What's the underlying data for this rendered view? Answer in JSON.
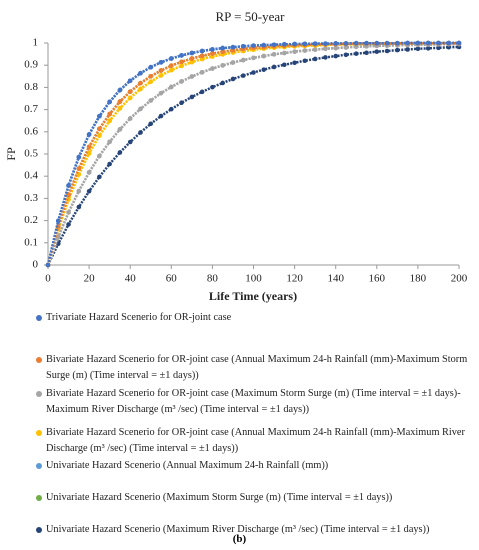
{
  "chart_data": {
    "type": "scatter",
    "title": "RP = 50-year",
    "x_label": "Life Time (years)",
    "y_label": "FP",
    "caption": "(b)",
    "x": [
      0,
      5,
      10,
      15,
      20,
      25,
      30,
      35,
      40,
      45,
      50,
      55,
      60,
      65,
      70,
      75,
      80,
      85,
      90,
      95,
      100,
      105,
      110,
      115,
      120,
      125,
      130,
      135,
      140,
      145,
      150,
      155,
      160,
      165,
      170,
      175,
      180,
      185,
      190,
      195,
      200
    ],
    "xlim": [
      0,
      200
    ],
    "xticks": [
      0,
      20,
      40,
      60,
      80,
      100,
      120,
      140,
      160,
      180,
      200
    ],
    "ylim": [
      0,
      1
    ],
    "yticks": [
      0,
      0.1,
      0.2,
      0.3,
      0.4,
      0.5,
      0.6,
      0.7,
      0.8,
      0.9,
      1
    ],
    "series": [
      {
        "name": "Trivariate Hazard Scenerio for OR-joint case",
        "color": "#4472c4",
        "values": [
          0,
          0.199,
          0.358,
          0.486,
          0.588,
          0.67,
          0.735,
          0.788,
          0.83,
          0.864,
          0.891,
          0.913,
          0.93,
          0.944,
          0.955,
          0.964,
          0.971,
          0.977,
          0.981,
          0.985,
          0.988,
          0.99,
          0.992,
          0.994,
          0.995,
          0.996,
          0.997,
          0.997,
          0.998,
          0.998,
          0.999,
          0.999,
          0.999,
          0.999,
          0.999,
          1,
          1,
          1,
          1,
          1,
          1
        ]
      },
      {
        "name": "Bivariate Hazard Scenerio for OR-joint case (Annual Maximum 24-h Rainfall (mm)-Maximum Storm Surge (m) (Time interval = ±1 days))",
        "color": "#ed7d31",
        "values": [
          0,
          0.173,
          0.316,
          0.434,
          0.532,
          0.613,
          0.68,
          0.736,
          0.781,
          0.819,
          0.85,
          0.876,
          0.898,
          0.915,
          0.93,
          0.942,
          0.952,
          0.96,
          0.967,
          0.973,
          0.978,
          0.981,
          0.985,
          0.987,
          0.99,
          0.991,
          0.993,
          0.994,
          0.995,
          0.996,
          0.997,
          0.997,
          0.998,
          0.998,
          0.998,
          0.999,
          0.999,
          0.999,
          0.999,
          0.999,
          0.999
        ]
      },
      {
        "name": "Bivariate Hazard Scenerio for OR-joint case (Maximum Storm Surge (m) (Time interval = ±1 days)-Maximum River Discharge (m³ /sec) (Time interval = ±1 days))",
        "color": "#a5a5a5",
        "values": [
          0,
          0.126,
          0.237,
          0.333,
          0.417,
          0.491,
          0.555,
          0.611,
          0.66,
          0.703,
          0.741,
          0.774,
          0.802,
          0.827,
          0.849,
          0.868,
          0.885,
          0.899,
          0.912,
          0.923,
          0.933,
          0.941,
          0.949,
          0.955,
          0.961,
          0.966,
          0.97,
          0.974,
          0.977,
          0.98,
          0.983,
          0.985,
          0.987,
          0.988,
          0.99,
          0.991,
          0.992,
          0.993,
          0.994,
          0.995,
          0.995
        ]
      },
      {
        "name": "Bivariate Hazard Scenerio for OR-joint case (Annual Maximum 24-h Rainfall (mm)-Maximum River Discharge (m³ /sec) (Time interval = ±1 days))",
        "color": "#ffc000",
        "values": [
          0,
          0.161,
          0.295,
          0.408,
          0.503,
          0.583,
          0.65,
          0.706,
          0.753,
          0.793,
          0.826,
          0.854,
          0.878,
          0.897,
          0.914,
          0.928,
          0.939,
          0.949,
          0.957,
          0.964,
          0.97,
          0.975,
          0.979,
          0.982,
          0.985,
          0.987,
          0.989,
          0.991,
          0.993,
          0.994,
          0.995,
          0.996,
          0.996,
          0.997,
          0.997,
          0.998,
          0.998,
          0.998,
          0.999,
          0.999,
          0.999
        ]
      },
      {
        "name": "Univariate Hazard Scenerio (Annual Maximum 24-h Rainfall (mm))",
        "color": "#5b9bd5",
        "values": [
          0,
          0.199,
          0.358,
          0.486,
          0.588,
          0.67,
          0.735,
          0.788,
          0.83,
          0.864,
          0.891,
          0.913,
          0.93,
          0.944,
          0.955,
          0.964,
          0.971,
          0.977,
          0.981,
          0.985,
          0.988,
          0.99,
          0.992,
          0.994,
          0.995,
          0.996,
          0.997,
          0.997,
          0.998,
          0.998,
          0.999,
          0.999,
          0.999,
          0.999,
          0.999,
          1,
          1,
          1,
          1,
          1,
          1
        ]
      },
      {
        "name": "Univariate Hazard Scenerio (Maximum Storm Surge (m) (Time interval = ±1 days))",
        "color": "#70ad47",
        "values": [
          0,
          0.173,
          0.316,
          0.434,
          0.532,
          0.613,
          0.68,
          0.736,
          0.781,
          0.819,
          0.85,
          0.876,
          0.898,
          0.915,
          0.93,
          0.942,
          0.952,
          0.96,
          0.967,
          0.973,
          0.978,
          0.981,
          0.985,
          0.987,
          0.99,
          0.991,
          0.993,
          0.994,
          0.995,
          0.996,
          0.997,
          0.997,
          0.998,
          0.998,
          0.998,
          0.999,
          0.999,
          0.999,
          0.999,
          0.999,
          0.999
        ]
      },
      {
        "name": "Univariate Hazard Scenerio (Maximum River Discharge (m³ /sec) (Time interval = ±1 days))",
        "color": "#264478",
        "values": [
          0,
          0.096,
          0.183,
          0.261,
          0.332,
          0.397,
          0.455,
          0.507,
          0.554,
          0.597,
          0.636,
          0.671,
          0.702,
          0.731,
          0.757,
          0.78,
          0.801,
          0.82,
          0.838,
          0.853,
          0.867,
          0.88,
          0.892,
          0.902,
          0.911,
          0.92,
          0.928,
          0.935,
          0.941,
          0.947,
          0.952,
          0.956,
          0.961,
          0.964,
          0.968,
          0.971,
          0.974,
          0.976,
          0.978,
          0.981,
          0.982
        ]
      }
    ]
  }
}
